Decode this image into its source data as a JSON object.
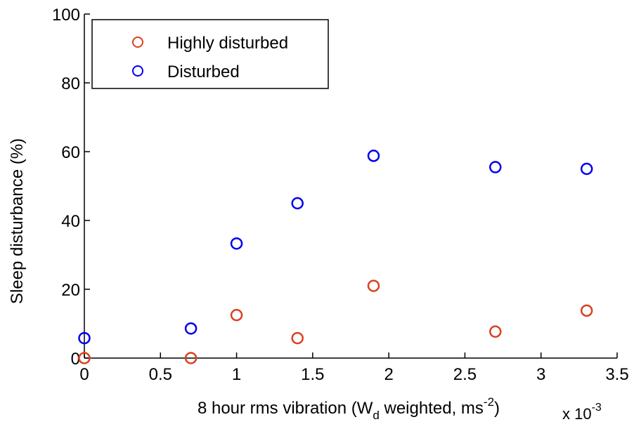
{
  "chart_data": {
    "type": "scatter",
    "title": "",
    "xlabel": {
      "prefix": "8 hour rms vibration (W",
      "sub": "d",
      "middle": " weighted, ms",
      "sup": "-2",
      "suffix": ")"
    },
    "ylabel": "Sleep disturbance (%)",
    "x_multiplier": {
      "base": "x 10",
      "exp": "-3"
    },
    "xlim": [
      0,
      3.5
    ],
    "ylim": [
      0,
      100
    ],
    "xticks": [
      0,
      0.5,
      1,
      1.5,
      2,
      2.5,
      3,
      3.5
    ],
    "xtick_labels": [
      "0",
      "0.5",
      "1",
      "1.5",
      "2",
      "2.5",
      "3",
      "3.5"
    ],
    "yticks": [
      0,
      20,
      40,
      60,
      80,
      100
    ],
    "ytick_labels": [
      "0",
      "20",
      "40",
      "60",
      "80",
      "100"
    ],
    "grid": false,
    "legend_position": "top-left",
    "series": [
      {
        "name": "Highly disturbed",
        "color": "#d9411e",
        "marker": "open-circle",
        "x": [
          0,
          0.7,
          1.0,
          1.4,
          1.9,
          2.7,
          3.3
        ],
        "y": [
          0,
          0,
          12.5,
          5.8,
          21,
          7.7,
          13.8
        ]
      },
      {
        "name": "Disturbed",
        "color": "#0000ee",
        "marker": "open-circle",
        "x": [
          0,
          0.7,
          1.0,
          1.4,
          1.9,
          2.7,
          3.3
        ],
        "y": [
          5.8,
          8.6,
          33.3,
          45,
          58.8,
          55.5,
          55
        ]
      }
    ]
  }
}
